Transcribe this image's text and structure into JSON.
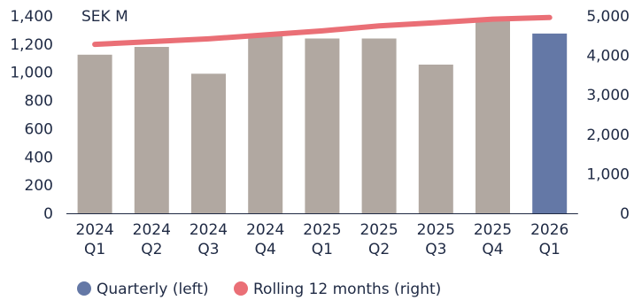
{
  "chart_data": {
    "type": "bar",
    "unit_label": "SEK M",
    "categories": [
      [
        "2024",
        "Q1"
      ],
      [
        "2024",
        "Q2"
      ],
      [
        "2024",
        "Q3"
      ],
      [
        "2024",
        "Q4"
      ],
      [
        "2025",
        "Q1"
      ],
      [
        "2025",
        "Q2"
      ],
      [
        "2025",
        "Q3"
      ],
      [
        "2025",
        "Q4"
      ],
      [
        "2026",
        "Q1"
      ]
    ],
    "y_left": {
      "ylim": [
        0,
        1400
      ],
      "ticks": [
        "0",
        "200",
        "400",
        "600",
        "800",
        "1,000",
        "1,200",
        "1,400"
      ]
    },
    "y_right": {
      "ylim": [
        0,
        5000
      ],
      "ticks": [
        "0",
        "1,000",
        "2,000",
        "3,000",
        "4,000",
        "5,000"
      ]
    },
    "grid": false,
    "legend_position": "bottom-left",
    "series": [
      {
        "name": "Quarterly (left)",
        "type": "bar",
        "axis": "left",
        "values": [
          1125,
          1180,
          990,
          1270,
          1240,
          1240,
          1055,
          1380,
          1275
        ],
        "color": "#b1a8a1",
        "highlight_color": "#6478a6",
        "highlight_index": 8
      },
      {
        "name": "Rolling 12 months (right)",
        "type": "line",
        "axis": "right",
        "values": [
          4280,
          4350,
          4420,
          4520,
          4620,
          4750,
          4830,
          4920,
          4960
        ],
        "color": "#ea6f76"
      }
    ]
  }
}
